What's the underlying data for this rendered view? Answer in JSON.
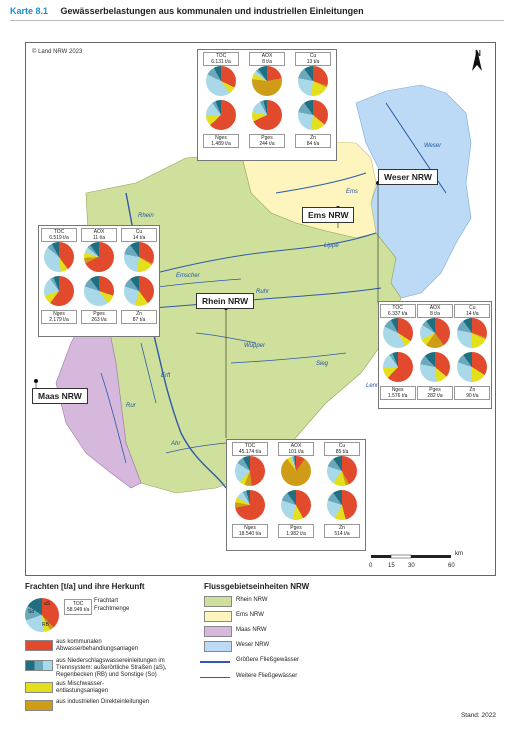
{
  "header": {
    "number": "Karte 8.1",
    "title": "Gewässerbelastungen aus kommunalen und industriellen Einleitungen"
  },
  "map": {
    "copyright": "© Land NRW 2023",
    "north_label": "N",
    "regions": {
      "weser": "Weser NRW",
      "ems": "Ems NRW",
      "rhein": "Rhein NRW",
      "maas": "Maas NRW"
    },
    "rivers": {
      "ems": "Ems",
      "lippe": "Lippe",
      "emscher": "Emscher",
      "ruhr": "Ruhr",
      "wupper": "Wupper",
      "sieg": "Sieg",
      "ahr": "Ahr",
      "rur": "Rur",
      "erft": "Erft",
      "rhein": "Rhein",
      "weser": "Weser",
      "lenne": "Lenne"
    },
    "scale": {
      "ticks": [
        "0",
        "15",
        "30",
        "60"
      ],
      "unit": "km"
    }
  },
  "colors": {
    "rhein": "#cfe09c",
    "ems": "#fdf4be",
    "maas": "#d5b8dc",
    "weser": "#bcdaf5",
    "kommunal": "#e24a2e",
    "ns_rb": "#1f6f80",
    "ns_as": "#6aa8bc",
    "ns_so": "#a9d9e8",
    "misch": "#e4df1c",
    "industrie": "#cf9c18"
  },
  "panels": {
    "top": {
      "labels": [
        "TOC",
        "AOX",
        "Cu",
        "Nges",
        "Pges",
        "Zn"
      ],
      "values": [
        "6.131 t/a",
        "8 t/a",
        "13 t/a",
        "1.489 t/a",
        "244 t/a",
        "84 t/a"
      ],
      "shares": [
        [
          32,
          0,
          8,
          42,
          10,
          8
        ],
        [
          22,
          55,
          6,
          4,
          3,
          10
        ],
        [
          30,
          2,
          20,
          26,
          12,
          10
        ],
        [
          63,
          0,
          12,
          15,
          4,
          6
        ],
        [
          68,
          0,
          10,
          14,
          4,
          4
        ],
        [
          36,
          0,
          16,
          26,
          12,
          10
        ]
      ]
    },
    "left": {
      "labels": [
        "TOC",
        "AOX",
        "Cu",
        "Nges",
        "Pges",
        "Zn"
      ],
      "values": [
        "6.519 t/a",
        "11 t/a",
        "14 t/a",
        "2.179 t/a",
        "263 t/a",
        "87 t/a"
      ],
      "shares": [
        [
          40,
          0,
          8,
          38,
          6,
          8
        ],
        [
          68,
          6,
          6,
          6,
          4,
          10
        ],
        [
          32,
          2,
          18,
          26,
          12,
          10
        ],
        [
          60,
          0,
          10,
          20,
          4,
          6
        ],
        [
          30,
          0,
          10,
          40,
          10,
          10
        ],
        [
          40,
          0,
          14,
          26,
          10,
          10
        ]
      ]
    },
    "right": {
      "labels": [
        "TOC",
        "AOX",
        "Cu",
        "Nges",
        "Pges",
        "Zn"
      ],
      "values": [
        "6.337 t/a",
        "8 t/a",
        "14 t/a",
        "1.576 t/a",
        "282 t/a",
        "90 t/a"
      ],
      "shares": [
        [
          34,
          0,
          8,
          40,
          10,
          8
        ],
        [
          40,
          20,
          8,
          16,
          6,
          10
        ],
        [
          30,
          2,
          18,
          28,
          12,
          10
        ],
        [
          62,
          0,
          12,
          16,
          4,
          6
        ],
        [
          36,
          0,
          12,
          30,
          10,
          12
        ],
        [
          34,
          0,
          16,
          30,
          10,
          10
        ]
      ]
    },
    "bottom": {
      "labels": [
        "TOC",
        "AOX",
        "Cu",
        "Nges",
        "Pges",
        "Zn"
      ],
      "values": [
        "45.174 t/a",
        "101 t/a",
        "85 t/a",
        "18.540 t/a",
        "1.982 t/a",
        "514 t/a"
      ],
      "shares": [
        [
          48,
          8,
          6,
          22,
          8,
          8
        ],
        [
          10,
          80,
          4,
          2,
          2,
          2
        ],
        [
          42,
          4,
          14,
          20,
          10,
          10
        ],
        [
          72,
          6,
          6,
          8,
          4,
          4
        ],
        [
          42,
          0,
          12,
          26,
          10,
          10
        ],
        [
          46,
          0,
          12,
          22,
          10,
          10
        ]
      ]
    }
  },
  "legend": {
    "title": "Frachten [t/a] und ihre Herkunft",
    "sample_kind": "TOC",
    "sample_value": "58.949 t/a",
    "frachtart": "Frachtart",
    "frachtmenge": "Frachtmenge",
    "segment_labels": [
      "So",
      "aS",
      "RB"
    ],
    "items": [
      "aus kommunalen Abwasserbehandlungsanlagen",
      "aus Niederschlagswassereinleitungen im Trennsystem: außerörtliche Straßen (aS), Regenbecken (RB) und Sonstige (So)",
      "aus Mischwasser-entlastungsanlagen",
      "aus industriellen Direkteinleitungen"
    ],
    "fge_title": "Flussgebietseinheiten NRW",
    "fge_items": [
      "Rhein NRW",
      "Ems NRW",
      "Maas NRW",
      "Weser NRW"
    ],
    "water_items": [
      "Größere Fließgewässer",
      "Weitere Fließgewässer"
    ]
  },
  "stand": "Stand: 2022"
}
